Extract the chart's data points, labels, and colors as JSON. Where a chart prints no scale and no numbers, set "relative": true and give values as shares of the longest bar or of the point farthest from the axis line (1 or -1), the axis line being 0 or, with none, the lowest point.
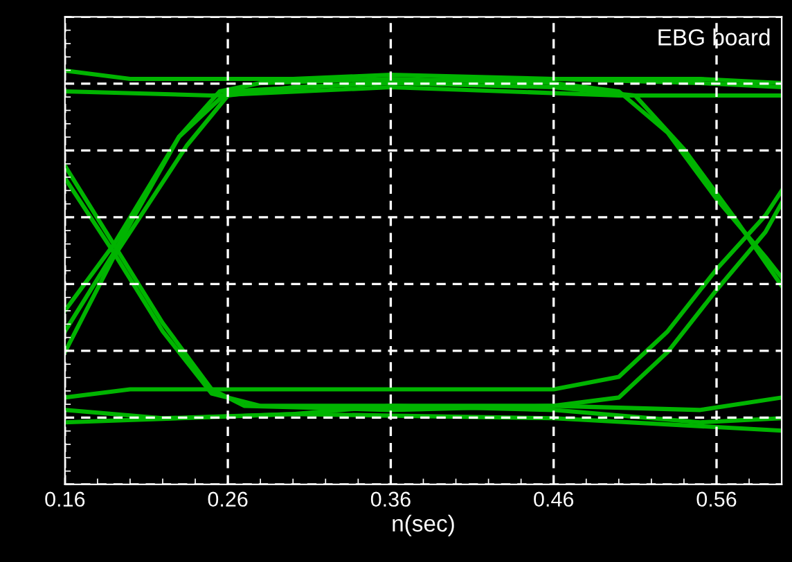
{
  "chart_data": {
    "type": "line",
    "xlabel": "n(sec)",
    "annotations": [
      "EBG board"
    ],
    "relative": true,
    "xlim": [
      0.16,
      0.6
    ],
    "xticks": [
      0.16,
      0.26,
      0.36,
      0.46,
      0.56
    ],
    "grid": true,
    "line_style": "solid",
    "marker": "none",
    "series": [
      {
        "color": "#00b400",
        "x": [
          0.16,
          0.2,
          0.3,
          0.36,
          0.46,
          0.55,
          0.6
        ],
        "values": [
          1.0,
          0.98,
          0.98,
          0.99,
          0.98,
          0.97,
          0.96
        ]
      },
      {
        "color": "#00b400",
        "x": [
          0.16,
          0.25,
          0.36,
          0.5,
          0.6
        ],
        "values": [
          0.95,
          0.94,
          0.96,
          0.94,
          0.94
        ]
      },
      {
        "color": "#00b400",
        "x": [
          0.16,
          0.22,
          0.3,
          0.36,
          0.46,
          0.55,
          0.6
        ],
        "values": [
          0.18,
          0.16,
          0.17,
          0.19,
          0.18,
          0.15,
          0.16
        ]
      },
      {
        "color": "#00b400",
        "x": [
          0.16,
          0.3,
          0.46,
          0.6
        ],
        "values": [
          0.15,
          0.17,
          0.16,
          0.13
        ]
      },
      {
        "color": "#00b400",
        "x": [
          0.16,
          0.19,
          0.23,
          0.255,
          0.28,
          0.36,
          0.46,
          0.5,
          0.53,
          0.56,
          0.59,
          0.6
        ],
        "values": [
          0.37,
          0.56,
          0.84,
          0.95,
          0.97,
          0.98,
          0.97,
          0.95,
          0.85,
          0.69,
          0.55,
          0.5
        ]
      },
      {
        "color": "#00b400",
        "x": [
          0.16,
          0.19,
          0.235,
          0.26,
          0.3,
          0.36,
          0.46,
          0.51,
          0.54,
          0.57,
          0.6
        ],
        "values": [
          0.32,
          0.55,
          0.82,
          0.94,
          0.96,
          0.97,
          0.96,
          0.94,
          0.81,
          0.65,
          0.48
        ]
      },
      {
        "color": "#00b400",
        "x": [
          0.16,
          0.19,
          0.22,
          0.25,
          0.27,
          0.36,
          0.46,
          0.5,
          0.53,
          0.56,
          0.59,
          0.6
        ],
        "values": [
          0.77,
          0.58,
          0.39,
          0.23,
          0.19,
          0.18,
          0.19,
          0.21,
          0.32,
          0.47,
          0.61,
          0.68
        ]
      },
      {
        "color": "#00b400",
        "x": [
          0.16,
          0.19,
          0.22,
          0.25,
          0.28,
          0.46,
          0.55,
          0.6
        ],
        "values": [
          0.74,
          0.56,
          0.37,
          0.22,
          0.19,
          0.19,
          0.18,
          0.21
        ]
      },
      {
        "color": "#00b400",
        "x": [
          0.16,
          0.19,
          0.23,
          0.26,
          0.4,
          0.55,
          0.6
        ],
        "values": [
          0.42,
          0.58,
          0.84,
          0.95,
          0.98,
          0.98,
          0.97
        ]
      },
      {
        "color": "#00b400",
        "x": [
          0.16,
          0.2,
          0.3,
          0.36,
          0.46,
          0.5,
          0.53,
          0.56,
          0.59,
          0.6
        ],
        "values": [
          0.21,
          0.23,
          0.23,
          0.23,
          0.23,
          0.26,
          0.37,
          0.52,
          0.65,
          0.71
        ]
      }
    ]
  }
}
